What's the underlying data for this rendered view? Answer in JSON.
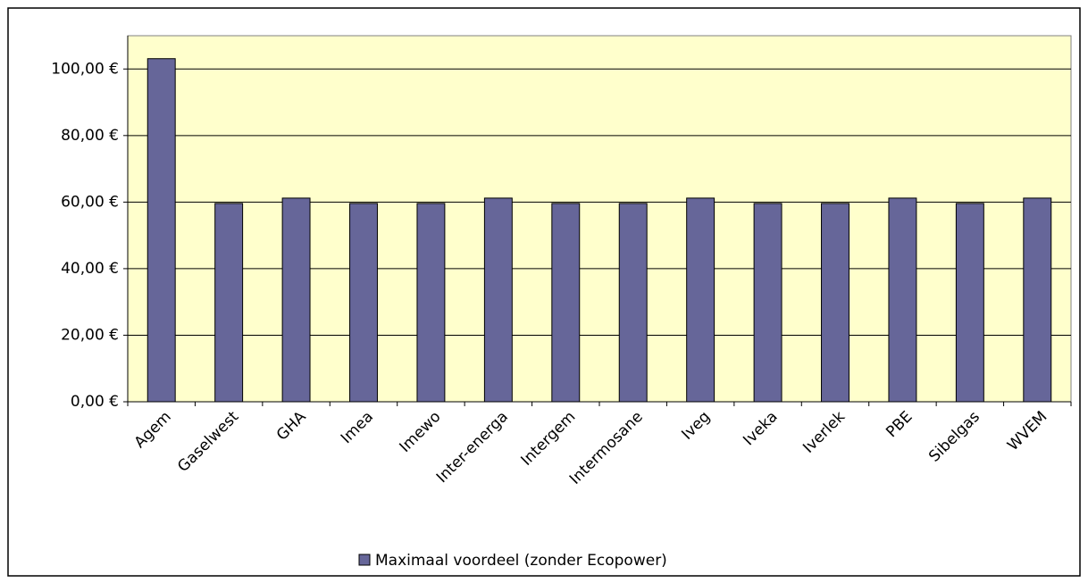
{
  "chart_data": {
    "type": "bar",
    "categories": [
      "Agem",
      "Gaselwest",
      "GHA",
      "Imea",
      "Imewo",
      "Inter-energa",
      "Intergem",
      "Intermosane",
      "Iveg",
      "Iveka",
      "Iverlek",
      "PBE",
      "Sibelgas",
      "WVEM"
    ],
    "series": [
      {
        "name": "Maximaal voordeel (zonder Ecopower)",
        "color": "#666699",
        "values": [
          103.1,
          59.6,
          61.2,
          59.6,
          59.6,
          61.2,
          59.6,
          59.6,
          61.2,
          59.6,
          59.6,
          61.2,
          59.6,
          61.2
        ]
      }
    ],
    "ylim": [
      0,
      110
    ],
    "yticks": [
      {
        "value": 0,
        "label": "0,00 €"
      },
      {
        "value": 20,
        "label": "20,00 €"
      },
      {
        "value": 40,
        "label": "40,00 €"
      },
      {
        "value": 60,
        "label": "60,00 €"
      },
      {
        "value": 80,
        "label": "80,00 €"
      },
      {
        "value": 100,
        "label": "100,00 €"
      }
    ],
    "grid": true,
    "legend": "bottom",
    "background": "#ffffcc"
  }
}
